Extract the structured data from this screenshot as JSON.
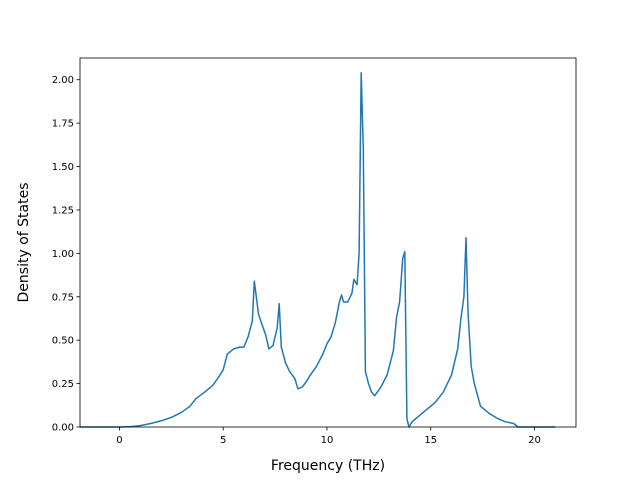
{
  "chart_data": {
    "type": "line",
    "title": "",
    "xlabel": "Frequency (THz)",
    "ylabel": "Density of States",
    "xlim": [
      -1.9,
      22.0
    ],
    "ylim": [
      0,
      2.125
    ],
    "x_ticks": [
      0,
      5,
      10,
      15,
      20
    ],
    "y_ticks": [
      0.0,
      0.25,
      0.5,
      0.75,
      1.0,
      1.25,
      1.5,
      1.75,
      2.0
    ],
    "x_tick_labels": [
      "0",
      "5",
      "10",
      "15",
      "20"
    ],
    "y_tick_labels": [
      "0.00",
      "0.25",
      "0.50",
      "0.75",
      "1.00",
      "1.25",
      "1.50",
      "1.75",
      "2.00"
    ],
    "grid": false,
    "legend": "none",
    "series": [
      {
        "color": "#1f77b4",
        "x": [
          -1.9,
          0.0,
          0.5,
          1.0,
          1.5,
          2.0,
          2.5,
          3.0,
          3.4,
          3.7,
          4.1,
          4.5,
          4.8,
          5.0,
          5.2,
          5.5,
          5.8,
          6.0,
          6.2,
          6.4,
          6.5,
          6.7,
          6.9,
          7.05,
          7.2,
          7.4,
          7.6,
          7.7,
          7.8,
          8.0,
          8.2,
          8.45,
          8.6,
          8.8,
          9.0,
          9.2,
          9.5,
          9.8,
          10.0,
          10.2,
          10.4,
          10.6,
          10.7,
          10.8,
          11.0,
          11.2,
          11.3,
          11.45,
          11.55,
          11.65,
          11.75,
          11.85,
          12.0,
          12.15,
          12.3,
          12.6,
          12.9,
          13.2,
          13.35,
          13.5,
          13.65,
          13.75,
          13.85,
          13.95,
          14.1,
          14.4,
          14.8,
          15.2,
          15.6,
          16.0,
          16.3,
          16.45,
          16.6,
          16.7,
          16.8,
          16.95,
          17.1,
          17.4,
          17.8,
          18.2,
          18.6,
          19.0,
          19.2,
          19.5,
          20.0,
          21.0
        ],
        "y": [
          0.0,
          0.0,
          0.002,
          0.008,
          0.02,
          0.035,
          0.055,
          0.085,
          0.12,
          0.165,
          0.2,
          0.24,
          0.29,
          0.33,
          0.42,
          0.45,
          0.46,
          0.46,
          0.52,
          0.61,
          0.84,
          0.65,
          0.58,
          0.53,
          0.45,
          0.47,
          0.57,
          0.71,
          0.46,
          0.37,
          0.32,
          0.28,
          0.22,
          0.23,
          0.26,
          0.3,
          0.35,
          0.42,
          0.48,
          0.52,
          0.6,
          0.72,
          0.76,
          0.72,
          0.72,
          0.77,
          0.85,
          0.82,
          1.0,
          2.04,
          1.6,
          0.32,
          0.25,
          0.2,
          0.18,
          0.23,
          0.3,
          0.44,
          0.63,
          0.72,
          0.97,
          1.01,
          0.05,
          0.0,
          0.03,
          0.06,
          0.1,
          0.14,
          0.2,
          0.3,
          0.45,
          0.62,
          0.75,
          1.09,
          0.65,
          0.35,
          0.25,
          0.12,
          0.08,
          0.05,
          0.03,
          0.02,
          0.0,
          0.0,
          0.0,
          0.0
        ]
      }
    ]
  }
}
